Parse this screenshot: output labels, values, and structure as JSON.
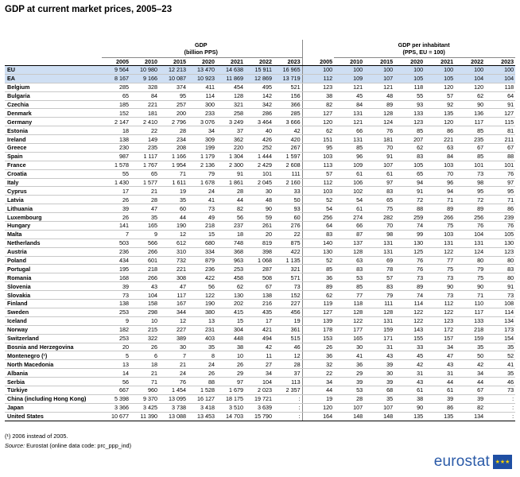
{
  "title": "GDP at current market prices, 2005–23",
  "header": {
    "gdp_label": "GDP\n(billion PPS)",
    "pc_label": "GDP per inhabitant\n(PPS, EU = 100)",
    "years": [
      "2005",
      "2010",
      "2015",
      "2020",
      "2021",
      "2022",
      "2023"
    ]
  },
  "rows": [
    {
      "name": "EU",
      "gdp": [
        "9 564",
        "10 980",
        "12 213",
        "13 470",
        "14 638",
        "15 911",
        "16 965"
      ],
      "pc": [
        "100",
        "100",
        "100",
        "100",
        "100",
        "100",
        "100"
      ],
      "agg": true
    },
    {
      "name": "EA",
      "gdp": [
        "8 167",
        "9 166",
        "10 087",
        "10 923",
        "11 869",
        "12 869",
        "13 719"
      ],
      "pc": [
        "112",
        "109",
        "107",
        "105",
        "105",
        "104",
        "104"
      ],
      "agg": true
    },
    {
      "name": "Belgium",
      "gdp": [
        "285",
        "328",
        "374",
        "411",
        "454",
        "495",
        "521"
      ],
      "pc": [
        "123",
        "121",
        "121",
        "118",
        "120",
        "120",
        "118"
      ]
    },
    {
      "name": "Bulgaria",
      "gdp": [
        "65",
        "84",
        "95",
        "114",
        "128",
        "142",
        "156"
      ],
      "pc": [
        "38",
        "45",
        "48",
        "55",
        "57",
        "62",
        "64"
      ]
    },
    {
      "name": "Czechia",
      "gdp": [
        "185",
        "221",
        "257",
        "300",
        "321",
        "342",
        "366"
      ],
      "pc": [
        "82",
        "84",
        "89",
        "93",
        "92",
        "90",
        "91"
      ]
    },
    {
      "name": "Denmark",
      "gdp": [
        "152",
        "181",
        "200",
        "233",
        "258",
        "286",
        "285"
      ],
      "pc": [
        "127",
        "131",
        "128",
        "133",
        "135",
        "136",
        "127"
      ]
    },
    {
      "name": "Germany",
      "gdp": [
        "2 147",
        "2 410",
        "2 796",
        "3 076",
        "3 249",
        "3 464",
        "3 666"
      ],
      "pc": [
        "120",
        "121",
        "124",
        "123",
        "120",
        "117",
        "115"
      ]
    },
    {
      "name": "Estonia",
      "gdp": [
        "18",
        "22",
        "28",
        "34",
        "37",
        "40",
        "42"
      ],
      "pc": [
        "62",
        "66",
        "76",
        "85",
        "86",
        "85",
        "81"
      ]
    },
    {
      "name": "Ireland",
      "gdp": [
        "138",
        "149",
        "234",
        "309",
        "362",
        "426",
        "420"
      ],
      "pc": [
        "151",
        "131",
        "181",
        "207",
        "221",
        "235",
        "211"
      ]
    },
    {
      "name": "Greece",
      "gdp": [
        "230",
        "235",
        "208",
        "199",
        "220",
        "252",
        "267"
      ],
      "pc": [
        "95",
        "85",
        "70",
        "62",
        "63",
        "67",
        "67"
      ]
    },
    {
      "name": "Spain",
      "gdp": [
        "987",
        "1 117",
        "1 166",
        "1 179",
        "1 304",
        "1 444",
        "1 597"
      ],
      "pc": [
        "103",
        "96",
        "91",
        "83",
        "84",
        "85",
        "88"
      ]
    },
    {
      "name": "France",
      "gdp": [
        "1 578",
        "1 767",
        "1 954",
        "2 136",
        "2 300",
        "2 429",
        "2 608"
      ],
      "pc": [
        "113",
        "109",
        "107",
        "105",
        "103",
        "101",
        "101"
      ]
    },
    {
      "name": "Croatia",
      "gdp": [
        "55",
        "65",
        "71",
        "79",
        "91",
        "101",
        "111"
      ],
      "pc": [
        "57",
        "61",
        "61",
        "65",
        "70",
        "73",
        "76"
      ]
    },
    {
      "name": "Italy",
      "gdp": [
        "1 430",
        "1 577",
        "1 611",
        "1 678",
        "1 861",
        "2 045",
        "2 160"
      ],
      "pc": [
        "112",
        "106",
        "97",
        "94",
        "96",
        "98",
        "97"
      ]
    },
    {
      "name": "Cyprus",
      "gdp": [
        "17",
        "21",
        "19",
        "24",
        "28",
        "30",
        "33"
      ],
      "pc": [
        "103",
        "102",
        "83",
        "91",
        "94",
        "95",
        "95"
      ]
    },
    {
      "name": "Latvia",
      "gdp": [
        "26",
        "28",
        "35",
        "41",
        "44",
        "48",
        "50"
      ],
      "pc": [
        "52",
        "54",
        "65",
        "72",
        "71",
        "72",
        "71"
      ]
    },
    {
      "name": "Lithuania",
      "gdp": [
        "39",
        "47",
        "60",
        "73",
        "82",
        "90",
        "93"
      ],
      "pc": [
        "54",
        "61",
        "75",
        "88",
        "89",
        "89",
        "86"
      ]
    },
    {
      "name": "Luxembourg",
      "gdp": [
        "26",
        "35",
        "44",
        "49",
        "56",
        "59",
        "60"
      ],
      "pc": [
        "256",
        "274",
        "282",
        "259",
        "266",
        "256",
        "239"
      ]
    },
    {
      "name": "Hungary",
      "gdp": [
        "141",
        "165",
        "190",
        "218",
        "237",
        "261",
        "276"
      ],
      "pc": [
        "64",
        "66",
        "70",
        "74",
        "75",
        "76",
        "76"
      ]
    },
    {
      "name": "Malta",
      "gdp": [
        "7",
        "9",
        "12",
        "15",
        "18",
        "20",
        "22"
      ],
      "pc": [
        "83",
        "87",
        "98",
        "99",
        "103",
        "104",
        "105"
      ]
    },
    {
      "name": "Netherlands",
      "gdp": [
        "503",
        "566",
        "612",
        "680",
        "748",
        "819",
        "875"
      ],
      "pc": [
        "140",
        "137",
        "131",
        "130",
        "131",
        "131",
        "130"
      ]
    },
    {
      "name": "Austria",
      "gdp": [
        "236",
        "266",
        "310",
        "334",
        "368",
        "398",
        "422"
      ],
      "pc": [
        "130",
        "128",
        "131",
        "125",
        "122",
        "124",
        "123"
      ]
    },
    {
      "name": "Poland",
      "gdp": [
        "434",
        "601",
        "732",
        "879",
        "963",
        "1 068",
        "1 135"
      ],
      "pc": [
        "52",
        "63",
        "69",
        "76",
        "77",
        "80",
        "80"
      ]
    },
    {
      "name": "Portugal",
      "gdp": [
        "195",
        "218",
        "221",
        "236",
        "253",
        "287",
        "321"
      ],
      "pc": [
        "85",
        "83",
        "78",
        "76",
        "75",
        "79",
        "83"
      ]
    },
    {
      "name": "Romania",
      "gdp": [
        "168",
        "266",
        "308",
        "422",
        "458",
        "508",
        "571"
      ],
      "pc": [
        "36",
        "53",
        "57",
        "73",
        "73",
        "75",
        "80"
      ]
    },
    {
      "name": "Slovenia",
      "gdp": [
        "39",
        "43",
        "47",
        "56",
        "62",
        "67",
        "73"
      ],
      "pc": [
        "89",
        "85",
        "83",
        "89",
        "90",
        "90",
        "91"
      ]
    },
    {
      "name": "Slovakia",
      "gdp": [
        "73",
        "104",
        "117",
        "122",
        "130",
        "138",
        "152"
      ],
      "pc": [
        "62",
        "77",
        "79",
        "74",
        "73",
        "71",
        "73"
      ]
    },
    {
      "name": "Finland",
      "gdp": [
        "138",
        "158",
        "167",
        "190",
        "202",
        "216",
        "227"
      ],
      "pc": [
        "119",
        "118",
        "111",
        "114",
        "112",
        "110",
        "108"
      ]
    },
    {
      "name": "Sweden",
      "gdp": [
        "253",
        "298",
        "344",
        "380",
        "415",
        "435",
        "456"
      ],
      "pc": [
        "127",
        "128",
        "128",
        "122",
        "122",
        "117",
        "114"
      ]
    },
    {
      "name": "Iceland",
      "gdp": [
        "9",
        "10",
        "12",
        "13",
        "15",
        "17",
        "19"
      ],
      "pc": [
        "139",
        "122",
        "131",
        "122",
        "123",
        "133",
        "134"
      ],
      "gap": true
    },
    {
      "name": "Norway",
      "gdp": [
        "182",
        "215",
        "227",
        "231",
        "304",
        "421",
        "361"
      ],
      "pc": [
        "178",
        "177",
        "159",
        "143",
        "172",
        "218",
        "173"
      ]
    },
    {
      "name": "Switzerland",
      "gdp": [
        "253",
        "322",
        "389",
        "403",
        "448",
        "494",
        "515"
      ],
      "pc": [
        "153",
        "165",
        "171",
        "155",
        "157",
        "159",
        "154"
      ]
    },
    {
      "name": "Bosnia and Herzegovina",
      "gdp": [
        "20",
        "26",
        "30",
        "35",
        "38",
        "42",
        "46"
      ],
      "pc": [
        "26",
        "30",
        "31",
        "33",
        "34",
        "35",
        "35"
      ],
      "gap": true
    },
    {
      "name": "Montenegro (¹)",
      "gdp": [
        "5",
        "6",
        "7",
        "8",
        "10",
        "11",
        "12"
      ],
      "pc": [
        "36",
        "41",
        "43",
        "45",
        "47",
        "50",
        "52"
      ]
    },
    {
      "name": "North Macedonia",
      "gdp": [
        "13",
        "18",
        "21",
        "24",
        "26",
        "27",
        "28"
      ],
      "pc": [
        "32",
        "36",
        "39",
        "42",
        "43",
        "42",
        "41"
      ]
    },
    {
      "name": "Albania",
      "gdp": [
        "14",
        "21",
        "24",
        "26",
        "29",
        "34",
        "37"
      ],
      "pc": [
        "22",
        "29",
        "30",
        "31",
        "31",
        "34",
        "35"
      ]
    },
    {
      "name": "Serbia",
      "gdp": [
        "56",
        "71",
        "76",
        "88",
        "97",
        "104",
        "113"
      ],
      "pc": [
        "34",
        "39",
        "39",
        "43",
        "44",
        "44",
        "46"
      ]
    },
    {
      "name": "Türkiye",
      "gdp": [
        "667",
        "960",
        "1 454",
        "1 528",
        "1 679",
        "2 023",
        "2 357"
      ],
      "pc": [
        "44",
        "53",
        "68",
        "61",
        "61",
        "67",
        "73"
      ]
    },
    {
      "name": "China (including Hong Kong)",
      "gdp": [
        "5 398",
        "9 370",
        "13 095",
        "16 127",
        "18 175",
        "19 721",
        ":"
      ],
      "pc": [
        "19",
        "28",
        "35",
        "38",
        "39",
        "39",
        ":"
      ],
      "gap": true
    },
    {
      "name": "Japan",
      "gdp": [
        "3 366",
        "3 425",
        "3 738",
        "3 418",
        "3 510",
        "3 639",
        ":"
      ],
      "pc": [
        "120",
        "107",
        "107",
        "90",
        "86",
        "82",
        ":"
      ]
    },
    {
      "name": "United States",
      "gdp": [
        "10 677",
        "11 390",
        "13 088",
        "13 453",
        "14 703",
        "15 790",
        ":"
      ],
      "pc": [
        "164",
        "148",
        "148",
        "135",
        "135",
        "134",
        ":"
      ]
    }
  ],
  "notes": {
    "footnote": "(¹) 2006 instead of 2005.",
    "source_label": "Source:",
    "source_text": " Eurostat (online data code: prc_ppp_ind)"
  },
  "logo": {
    "text": "eurostat"
  }
}
